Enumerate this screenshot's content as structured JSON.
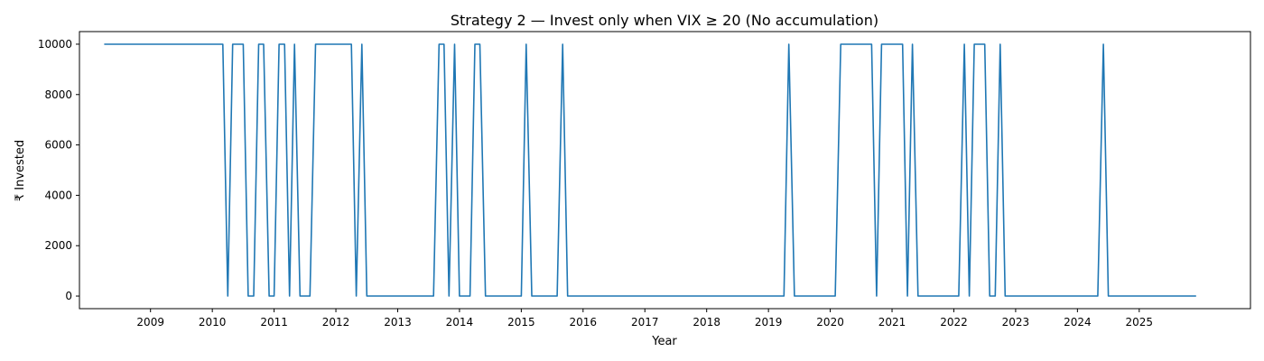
{
  "chart_data": {
    "type": "line",
    "title": "Strategy 2 — Invest only when VIX ≥ 20 (No accumulation)",
    "xlabel": "Year",
    "ylabel": "₹ Invested",
    "xlim": [
      2007.85,
      2026.8
    ],
    "ylim": [
      -500,
      10500
    ],
    "x_ticks": [
      2009,
      2010,
      2011,
      2012,
      2013,
      2014,
      2015,
      2016,
      2017,
      2018,
      2019,
      2020,
      2021,
      2022,
      2023,
      2024,
      2025
    ],
    "x_tick_labels": [
      "2009",
      "2010",
      "2011",
      "2012",
      "2013",
      "2014",
      "2015",
      "2016",
      "2017",
      "2018",
      "2019",
      "2020",
      "2021",
      "2022",
      "2023",
      "2024",
      "2025"
    ],
    "y_ticks": [
      0,
      2000,
      4000,
      6000,
      8000,
      10000
    ],
    "y_tick_labels": [
      "0",
      "2000",
      "4000",
      "6000",
      "8000",
      "10000"
    ],
    "grid": false,
    "line_color": "#1f77b4",
    "series": [
      {
        "x": [
          2008.25,
          2010.17,
          2010.25,
          2010.33,
          2010.5,
          2010.58,
          2010.67,
          2010.75,
          2010.83,
          2010.92,
          2011.0,
          2011.08,
          2011.17,
          2011.25,
          2011.33,
          2011.42,
          2011.58,
          2011.67,
          2012.25,
          2012.33,
          2012.42,
          2012.5,
          2013.58,
          2013.67,
          2013.75,
          2013.83,
          2013.92,
          2014.0,
          2014.17,
          2014.25,
          2014.33,
          2014.42,
          2015.0,
          2015.08,
          2015.17,
          2015.58,
          2015.67,
          2015.75,
          2019.25,
          2019.33,
          2019.42,
          2020.08,
          2020.17,
          2020.67,
          2020.75,
          2020.83,
          2021.17,
          2021.25,
          2021.33,
          2021.42,
          2022.08,
          2022.17,
          2022.25,
          2022.33,
          2022.5,
          2022.58,
          2022.67,
          2022.75,
          2022.83,
          2024.33,
          2024.42,
          2024.5,
          2025.92
        ],
        "values": [
          10000,
          10000,
          0,
          10000,
          10000,
          0,
          0,
          10000,
          10000,
          0,
          0,
          10000,
          10000,
          0,
          10000,
          0,
          0,
          10000,
          10000,
          0,
          10000,
          0,
          0,
          10000,
          10000,
          0,
          10000,
          0,
          0,
          10000,
          10000,
          0,
          0,
          10000,
          0,
          0,
          10000,
          0,
          0,
          10000,
          0,
          0,
          10000,
          10000,
          0,
          10000,
          10000,
          0,
          10000,
          0,
          0,
          10000,
          0,
          10000,
          10000,
          0,
          0,
          10000,
          0,
          0,
          10000,
          0,
          0
        ]
      }
    ]
  }
}
